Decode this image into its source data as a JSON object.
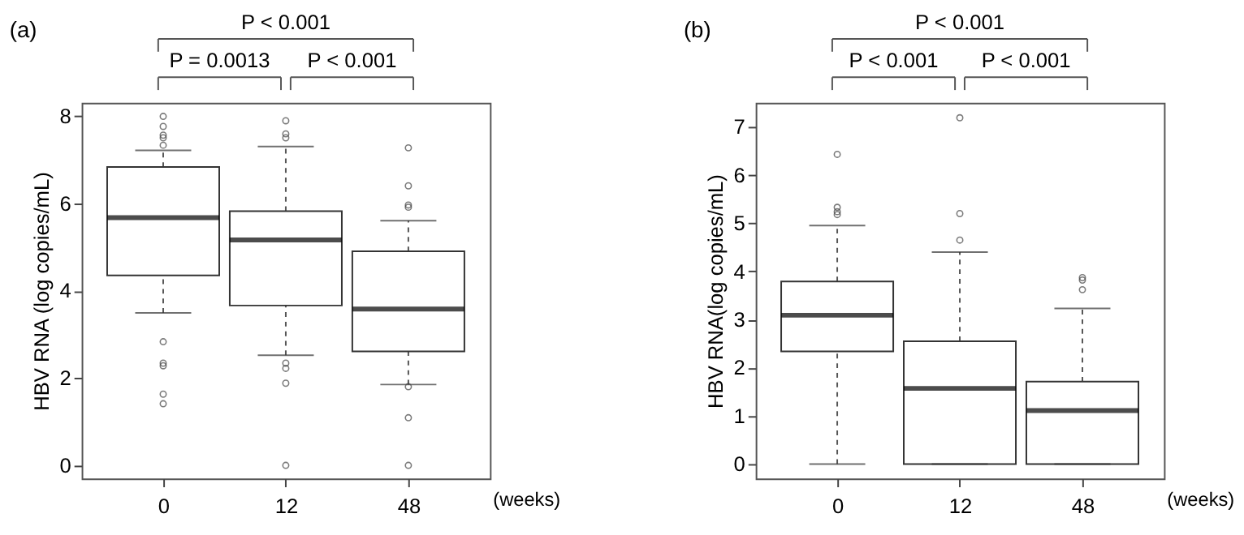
{
  "chart_data": [
    {
      "type": "box",
      "title": "(a)",
      "xlabel": "(weeks)",
      "ylabel": "HBV RNA (log copies/mL)",
      "categories": [
        "0",
        "12",
        "48"
      ],
      "boxes": [
        {
          "low": 3.49,
          "q1": 4.35,
          "median": 5.67,
          "q3": 6.83,
          "high": 7.21,
          "outliers": [
            7.99,
            7.76,
            7.56,
            7.5,
            7.33,
            2.83,
            2.34,
            2.28,
            1.63,
            1.41
          ]
        },
        {
          "low": 2.52,
          "q1": 3.66,
          "median": 5.16,
          "q3": 5.82,
          "high": 7.3,
          "outliers": [
            7.89,
            7.59,
            7.5,
            2.34,
            2.22,
            1.88,
            0
          ]
        },
        {
          "low": 1.85,
          "q1": 2.61,
          "median": 3.58,
          "q3": 4.9,
          "high": 5.6,
          "outliers": [
            7.27,
            6.4,
            5.96,
            5.91,
            1.8,
            1.09,
            0
          ]
        }
      ],
      "ylim": [
        -0.3,
        8.3
      ],
      "yticks": [
        0,
        2,
        4,
        6,
        8
      ],
      "grid": false,
      "annotations": [
        "P < 0.001",
        "P = 0.0013",
        "P < 0.001"
      ]
    },
    {
      "type": "box",
      "title": "(b)",
      "xlabel": "(weeks)",
      "ylabel": "HBV RNA(log copies/mL)",
      "categories": [
        "0",
        "12",
        "48"
      ],
      "boxes": [
        {
          "low": 0,
          "q1": 2.34,
          "median": 3.09,
          "q3": 3.79,
          "high": 4.95,
          "outliers": [
            6.43,
            5.33,
            5.24,
            5.18
          ]
        },
        {
          "low": 0,
          "q1": 0,
          "median": 1.57,
          "q3": 2.55,
          "high": 4.4,
          "outliers": [
            7.19,
            5.2,
            4.65
          ]
        },
        {
          "low": 0,
          "q1": 0,
          "median": 1.11,
          "q3": 1.71,
          "high": 3.23,
          "outliers": [
            3.87,
            3.82,
            3.62
          ]
        }
      ],
      "ylim": [
        -0.3,
        7.5
      ],
      "yticks": [
        0,
        1,
        2,
        3,
        4,
        5,
        6,
        7
      ],
      "grid": false,
      "annotations": [
        "P < 0.001",
        "P < 0.001",
        "P < 0.001"
      ]
    }
  ]
}
